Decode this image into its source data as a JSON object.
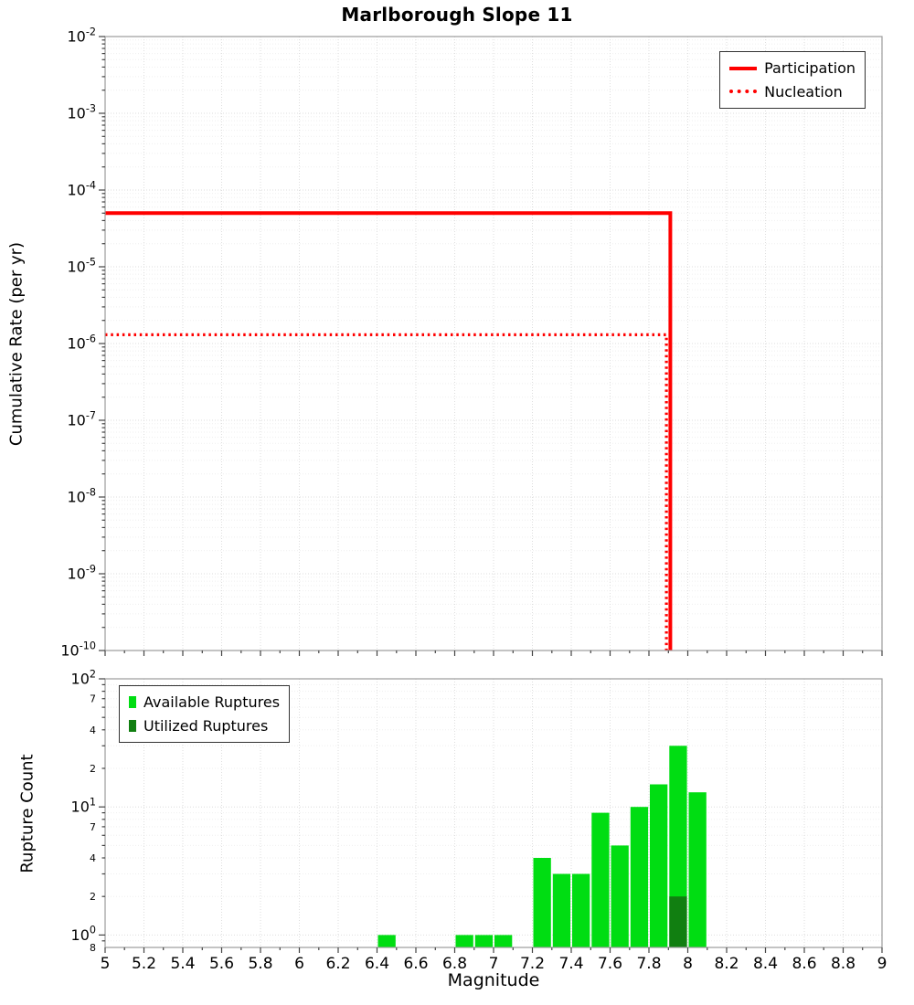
{
  "title": "Marlborough Slope 11",
  "axes": {
    "x_label": "Magnitude",
    "top_y_label": "Cumulative Rate (per yr)",
    "bottom_y_label": "Rupture Count"
  },
  "colors": {
    "series_red": "#ff0000",
    "available_green": "#00dd12",
    "utilized_green": "#117f11",
    "grid_major": "#dedede",
    "grid_minor": "#efefef",
    "frame": "#9b9b9b",
    "tick": "#444444",
    "text": "#000000"
  },
  "legends": {
    "top": [
      {
        "label": "Participation",
        "style": "solid"
      },
      {
        "label": "Nucleation",
        "style": "dotted"
      }
    ],
    "bottom": [
      {
        "label": "Available Ruptures",
        "style": "filled"
      },
      {
        "label": "Utilized Ruptures",
        "style": "filled"
      }
    ]
  },
  "chart_data": [
    {
      "type": "line",
      "panel": "top",
      "title": "Marlborough Slope 11",
      "xlabel": "",
      "ylabel": "Cumulative Rate (per yr)",
      "xlim": [
        5,
        9
      ],
      "ylim": [
        1e-10,
        0.01
      ],
      "y_scale": "log",
      "grid": true,
      "x_tick_labels_visible": false,
      "y_tick_exponents": [
        -2,
        -3,
        -4,
        -5,
        -6,
        -7,
        -8,
        -9,
        -10
      ],
      "legend_position": "top-right",
      "series": [
        {
          "name": "Participation",
          "line": "solid",
          "color": "#ff0000",
          "points": [
            [
              5.0,
              5e-05
            ],
            [
              7.91,
              5e-05
            ],
            [
              7.91,
              1e-10
            ]
          ]
        },
        {
          "name": "Nucleation",
          "line": "dotted",
          "color": "#ff0000",
          "points": [
            [
              5.0,
              1.3e-06
            ],
            [
              7.89,
              1.3e-06
            ],
            [
              7.89,
              1e-10
            ]
          ]
        }
      ]
    },
    {
      "type": "bar",
      "panel": "bottom",
      "xlabel": "Magnitude",
      "ylabel": "Rupture Count",
      "xlim": [
        5,
        9
      ],
      "ylim": [
        0.8,
        100
      ],
      "y_scale": "log",
      "grid": true,
      "bar_width": 0.1,
      "x_tick_values": [
        5,
        5.2,
        5.4,
        5.6,
        5.8,
        6,
        6.2,
        6.4,
        6.6,
        6.8,
        7,
        7.2,
        7.4,
        7.6,
        7.8,
        8,
        8.2,
        8.4,
        8.6,
        8.8,
        9
      ],
      "x_tick_labels": [
        "5",
        "5.2",
        "5.4",
        "5.6",
        "5.8",
        "6",
        "6.2",
        "6.4",
        "6.6",
        "6.8",
        "7",
        "7.2",
        "7.4",
        "7.6",
        "7.8",
        "8",
        "8.2",
        "8.4",
        "8.6",
        "8.8",
        "9"
      ],
      "y_major_ticks": [
        {
          "exponent": 2,
          "value": 100
        },
        {
          "exponent": 1,
          "value": 10
        },
        {
          "exponent": 0,
          "value": 1
        }
      ],
      "y_minor_labels": [
        {
          "label": "7",
          "value": 70
        },
        {
          "label": "4",
          "value": 40
        },
        {
          "label": "2",
          "value": 20
        },
        {
          "label": "7",
          "value": 7
        },
        {
          "label": "4",
          "value": 4
        },
        {
          "label": "2",
          "value": 2
        },
        {
          "label": "8",
          "value": 0.8
        }
      ],
      "legend_position": "top-left",
      "series": [
        {
          "name": "Available Ruptures",
          "color": "#00dd12",
          "bars": [
            {
              "x": 6.45,
              "count": 1
            },
            {
              "x": 6.85,
              "count": 1
            },
            {
              "x": 6.95,
              "count": 1
            },
            {
              "x": 7.05,
              "count": 1
            },
            {
              "x": 7.25,
              "count": 4
            },
            {
              "x": 7.35,
              "count": 3
            },
            {
              "x": 7.45,
              "count": 3
            },
            {
              "x": 7.55,
              "count": 9
            },
            {
              "x": 7.65,
              "count": 5
            },
            {
              "x": 7.75,
              "count": 10
            },
            {
              "x": 7.85,
              "count": 15
            },
            {
              "x": 7.95,
              "count": 30
            },
            {
              "x": 8.05,
              "count": 13
            }
          ]
        },
        {
          "name": "Utilized Ruptures",
          "color": "#117f11",
          "bars": [
            {
              "x": 7.95,
              "count": 2
            }
          ]
        }
      ]
    }
  ]
}
